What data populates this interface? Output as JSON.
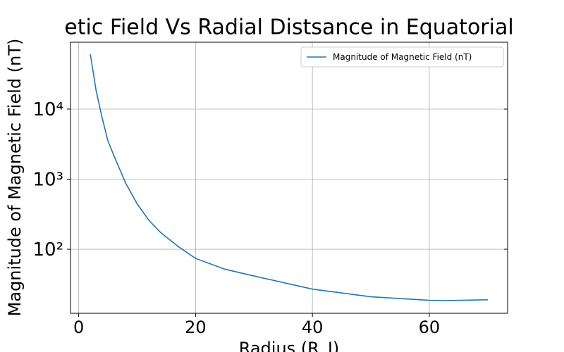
{
  "chart_data": {
    "type": "line",
    "title": "etic Field Vs Radial Distsance in Equatorial",
    "x_label": "Radius (R_J)",
    "y_label": "Magnitude of Magnetic Field (nT)",
    "x": [
      2,
      3,
      4,
      5,
      6,
      7,
      8,
      10,
      12,
      14,
      17,
      20,
      25,
      30,
      40,
      50,
      60,
      63,
      70
    ],
    "series": [
      {
        "name": "Magnitude of Magnetic Field (nT)",
        "color": "#1f77b4",
        "values": [
          60800,
          18000,
          7600,
          3530,
          2200,
          1400,
          890,
          445,
          260,
          174,
          110,
          74,
          52,
          41.5,
          27,
          21,
          18.7,
          18.5,
          19
        ]
      }
    ],
    "xlim": [
      -1.4,
      73.4
    ],
    "xticks": [
      0,
      20,
      40,
      60
    ],
    "ylim": [
      12.2,
      90000
    ],
    "y_log": true,
    "yticks": [
      {
        "value": 100,
        "label": "10²"
      },
      {
        "value": 1000,
        "label": "10³"
      },
      {
        "value": 10000,
        "label": "10⁴"
      }
    ],
    "grid": true,
    "legend": "upper right"
  }
}
